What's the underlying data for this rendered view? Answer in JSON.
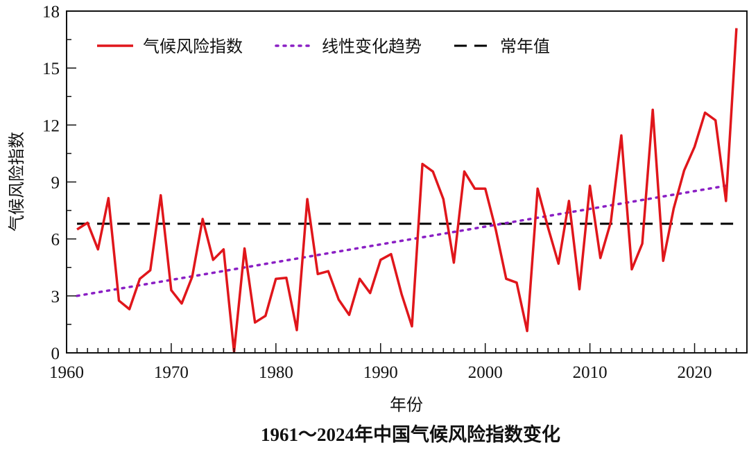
{
  "chart_data": {
    "type": "line",
    "title": "1961～2024年中国气候风险指数变化",
    "xlabel": "年份",
    "ylabel": "气候风险指数",
    "xlim": [
      1960,
      2025
    ],
    "ylim": [
      0,
      18
    ],
    "xticks": [
      1960,
      1970,
      1980,
      1990,
      2000,
      2010,
      2020
    ],
    "yticks": [
      0,
      3,
      6,
      9,
      12,
      15,
      18
    ],
    "grid": false,
    "legend_placement": "top-left",
    "colors": {
      "index": "#e0161b",
      "trend": "#8a1fc4",
      "normal": "#000000"
    },
    "series": [
      {
        "name": "气候风险指数",
        "style": "solid",
        "x": [
          1961,
          1962,
          1963,
          1964,
          1965,
          1966,
          1967,
          1968,
          1969,
          1970,
          1971,
          1972,
          1973,
          1974,
          1975,
          1976,
          1977,
          1978,
          1979,
          1980,
          1981,
          1982,
          1983,
          1984,
          1985,
          1986,
          1987,
          1988,
          1989,
          1990,
          1991,
          1992,
          1993,
          1994,
          1995,
          1996,
          1997,
          1998,
          1999,
          2000,
          2001,
          2002,
          2003,
          2004,
          2005,
          2006,
          2007,
          2008,
          2009,
          2010,
          2011,
          2012,
          2013,
          2014,
          2015,
          2016,
          2017,
          2018,
          2019,
          2020,
          2021,
          2022,
          2023,
          2024
        ],
        "values": [
          6.5,
          6.85,
          5.45,
          8.15,
          2.75,
          2.3,
          3.9,
          4.35,
          8.3,
          3.3,
          2.6,
          4.0,
          7.05,
          4.9,
          5.45,
          0.05,
          5.5,
          1.6,
          1.95,
          3.9,
          3.95,
          1.2,
          8.1,
          4.15,
          4.3,
          2.8,
          2.0,
          3.9,
          3.15,
          4.9,
          5.2,
          3.1,
          1.4,
          9.95,
          9.55,
          8.1,
          4.75,
          9.55,
          8.65,
          8.65,
          6.5,
          3.9,
          3.7,
          1.15,
          8.65,
          6.6,
          4.7,
          8.0,
          3.35,
          8.8,
          5.0,
          6.9,
          11.45,
          4.4,
          5.75,
          12.8,
          4.85,
          7.6,
          9.6,
          10.85,
          12.65,
          12.25,
          8.0,
          17.1
        ]
      },
      {
        "name": "线性变化趋势",
        "style": "dotted",
        "x": [
          1961,
          2023
        ],
        "values": [
          3.0,
          8.8
        ]
      },
      {
        "name": "常年值",
        "style": "dashed",
        "x": [
          1961,
          2024
        ],
        "values": [
          6.8,
          6.8
        ]
      }
    ]
  }
}
